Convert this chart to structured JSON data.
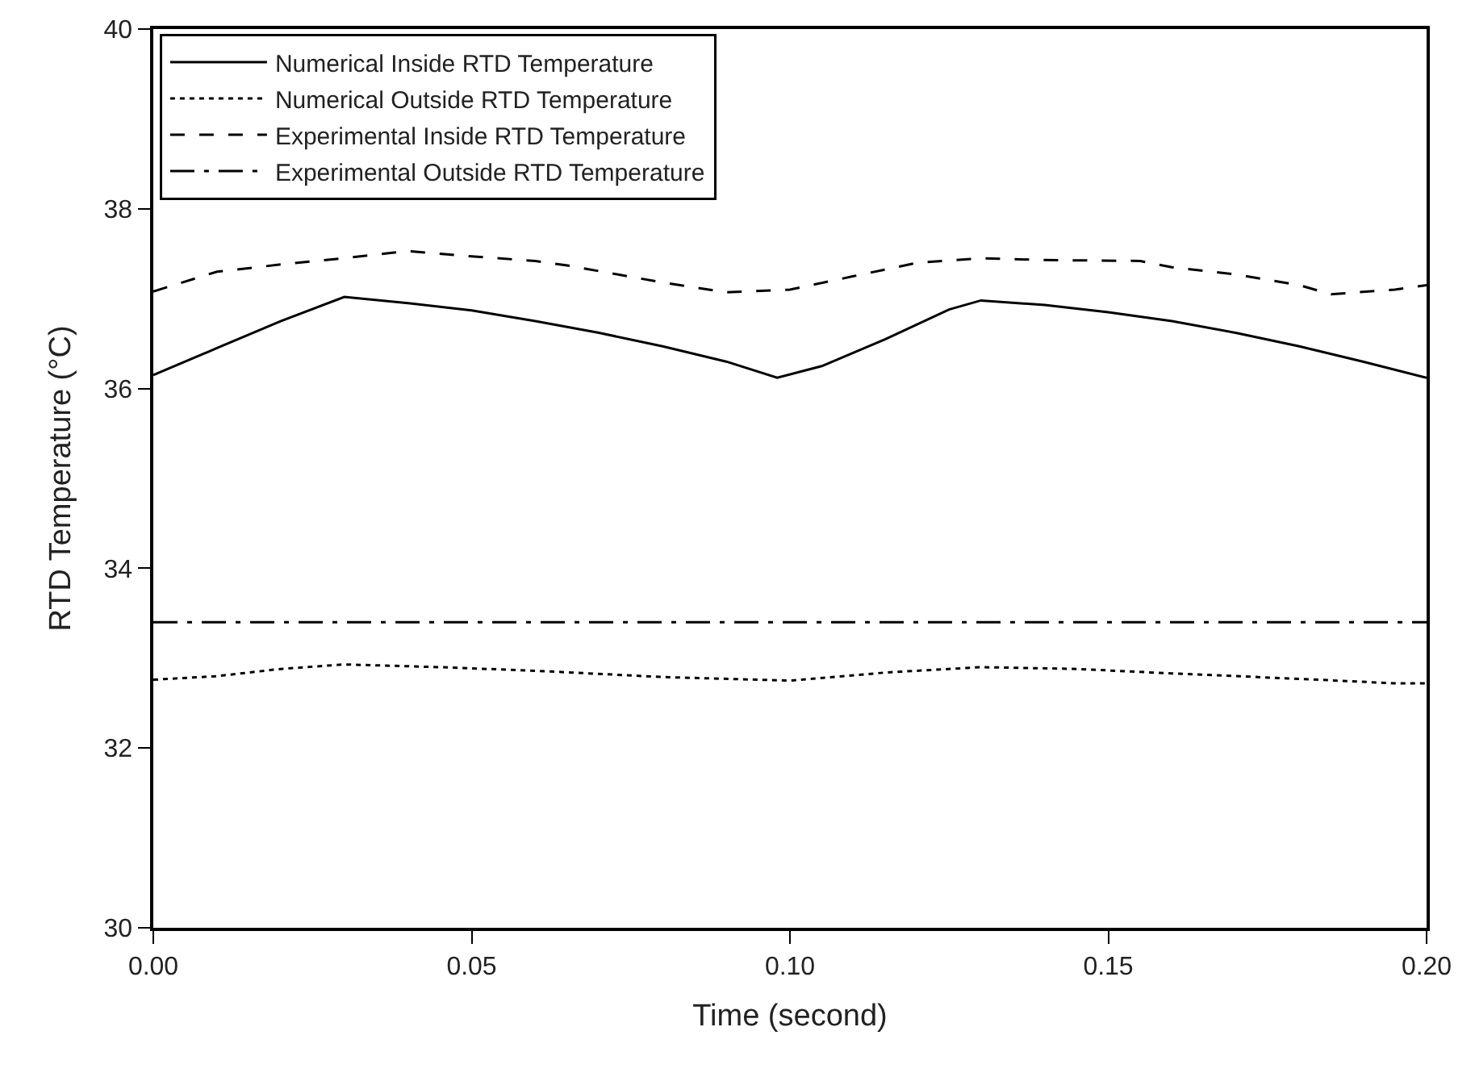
{
  "chart_data": {
    "type": "line",
    "xlabel": "Time (second)",
    "ylabel": "RTD Temperature (°C)",
    "xlim": [
      0,
      0.2
    ],
    "xticks": [
      {
        "value": 0,
        "label": "0.00"
      },
      0.05,
      {
        "value": 0.1,
        "label": "0.10"
      },
      0.15,
      {
        "value": 0.2,
        "label": "0.20"
      }
    ],
    "ylim": [
      30,
      40
    ],
    "yticks": [
      30,
      32,
      34,
      36,
      38,
      40
    ],
    "legend": "top left",
    "marker": "none",
    "series": [
      {
        "name": "Numerical Inside RTD Temperature",
        "color": "#000000",
        "line_style": "solid",
        "x": [
          0,
          0.01,
          0.02,
          0.03,
          0.04,
          0.05,
          0.06,
          0.07,
          0.08,
          0.09,
          0.098,
          0.105,
          0.115,
          0.125,
          0.13,
          0.14,
          0.15,
          0.16,
          0.17,
          0.18,
          0.19,
          0.2
        ],
        "values": [
          36.15,
          36.45,
          36.75,
          37.02,
          36.95,
          36.87,
          36.75,
          36.62,
          36.47,
          36.3,
          36.12,
          36.25,
          36.55,
          36.88,
          36.98,
          36.93,
          36.85,
          36.75,
          36.62,
          36.47,
          36.3,
          36.12
        ]
      },
      {
        "name": "Numerical Outside RTD Temperature",
        "color": "#000000",
        "line_style": "dotted",
        "x": [
          0,
          0.01,
          0.02,
          0.03,
          0.045,
          0.06,
          0.08,
          0.1,
          0.115,
          0.13,
          0.145,
          0.16,
          0.18,
          0.195,
          0.2
        ],
        "values": [
          32.76,
          32.8,
          32.88,
          32.93,
          32.9,
          32.86,
          32.79,
          32.75,
          32.84,
          32.9,
          32.88,
          32.83,
          32.77,
          32.72,
          32.72
        ]
      },
      {
        "name": "Experimental Inside RTD Temperature",
        "color": "#000000",
        "line_style": "dashed",
        "x": [
          0,
          0.01,
          0.02,
          0.03,
          0.04,
          0.05,
          0.06,
          0.065,
          0.08,
          0.09,
          0.1,
          0.11,
          0.12,
          0.13,
          0.14,
          0.155,
          0.16,
          0.17,
          0.18,
          0.185,
          0.195,
          0.2
        ],
        "values": [
          37.08,
          37.3,
          37.38,
          37.45,
          37.53,
          37.47,
          37.42,
          37.37,
          37.18,
          37.07,
          37.1,
          37.25,
          37.4,
          37.45,
          37.43,
          37.42,
          37.35,
          37.27,
          37.15,
          37.05,
          37.1,
          37.15
        ]
      },
      {
        "name": "Experimental Outside RTD Temperature",
        "color": "#000000",
        "line_style": "dashdot",
        "x": [
          0,
          0.2
        ],
        "values": [
          33.4,
          33.4
        ]
      }
    ]
  }
}
